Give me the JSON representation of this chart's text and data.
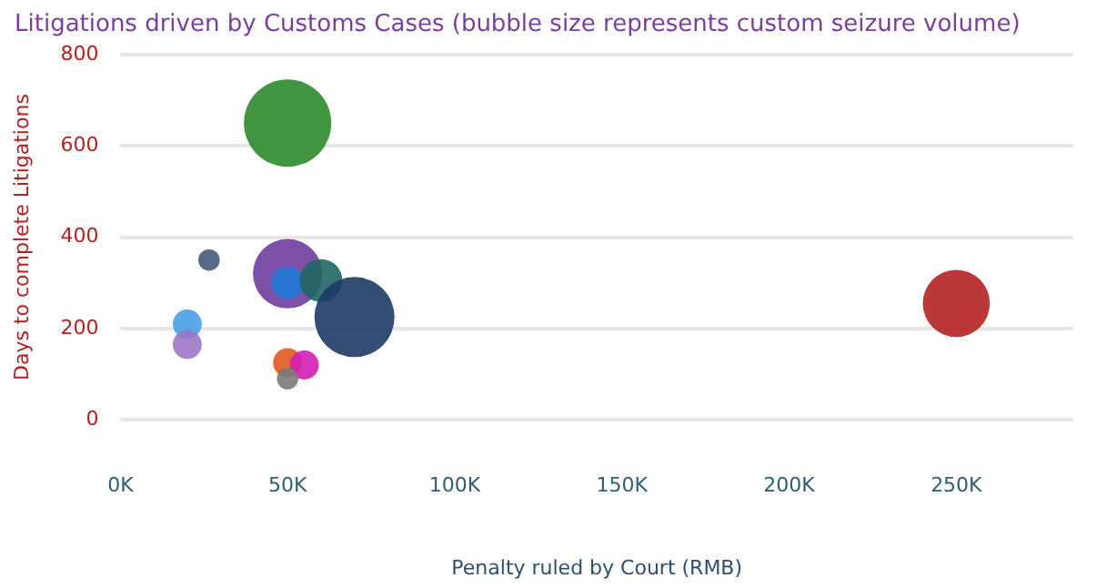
{
  "chart_data": {
    "type": "bubble",
    "title": "Litigations driven by Customs Cases (bubble size represents custom seizure volume)",
    "xlabel": "Penalty ruled by Court (RMB)",
    "ylabel": "Days to complete Litigations",
    "x": [
      50000,
      26500,
      50000,
      50000,
      60000,
      70000,
      20000,
      20000,
      50000,
      55000,
      50000,
      250000
    ],
    "values": [
      650,
      350,
      320,
      300,
      305,
      225,
      210,
      165,
      125,
      120,
      90,
      255
    ],
    "sizes": [
      1,
      0.06,
      0.63,
      0.14,
      0.24,
      0.84,
      0.11,
      0.11,
      0.11,
      0.11,
      0.06,
      0.59
    ],
    "colors": [
      "#2e8b2e",
      "#44597a",
      "#6f3d9e",
      "#1e78d4",
      "#1f6663",
      "#1d3a66",
      "#4a9ee6",
      "#9a78c4",
      "#e05a1e",
      "#d11fb4",
      "#7a7a7a",
      "#b22222"
    ],
    "xlim": [
      0,
      285000
    ],
    "xticks": [
      {
        "value": 0,
        "label": "0K"
      },
      {
        "value": 50000,
        "label": "50K"
      },
      {
        "value": 100000,
        "label": "100K"
      },
      {
        "value": 150000,
        "label": "150K"
      },
      {
        "value": 200000,
        "label": "200K"
      },
      {
        "value": 250000,
        "label": "250K"
      }
    ],
    "ylim": [
      0,
      800
    ],
    "yticks": [
      0,
      200,
      400,
      600,
      800
    ],
    "grid": "y",
    "legend": false
  }
}
